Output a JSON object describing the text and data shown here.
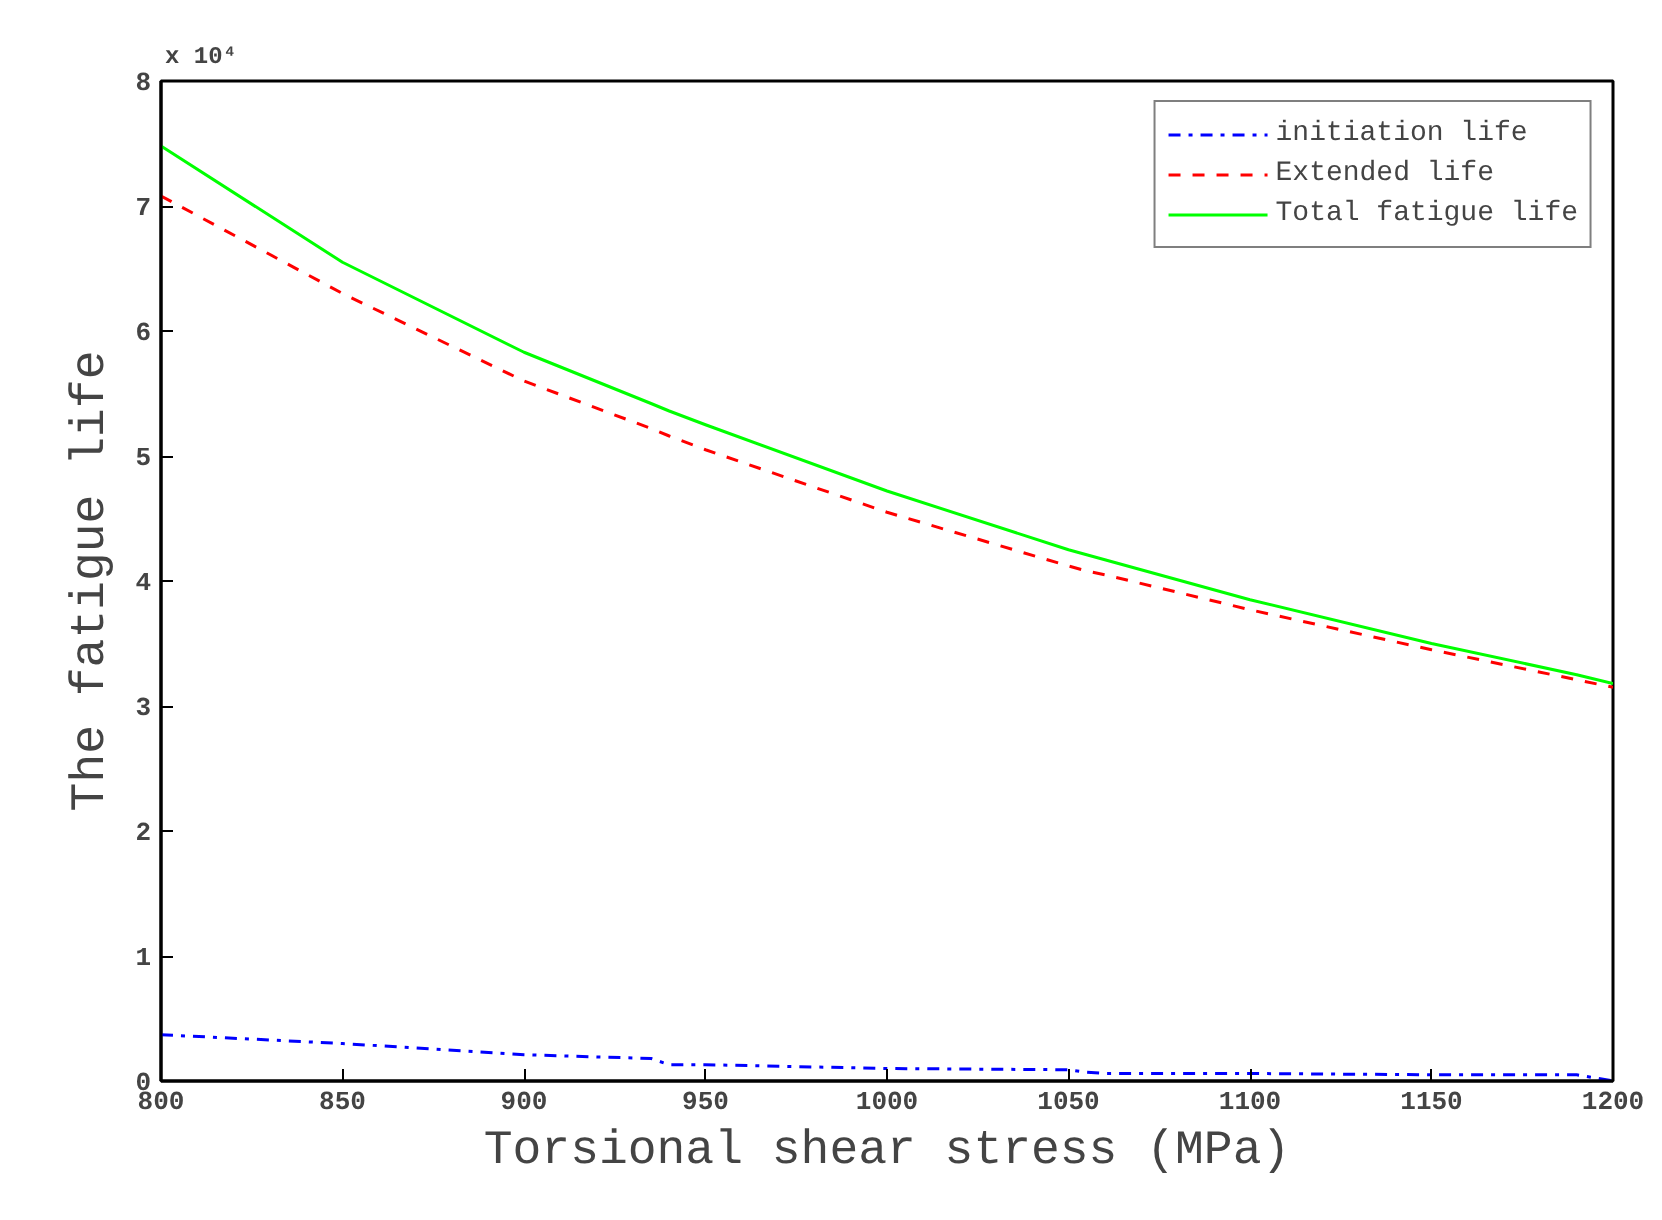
{
  "chart_data": {
    "type": "line",
    "xlabel": "Torsional shear stress (MPa)",
    "ylabel": "The fatigue life",
    "annotations": [
      "x 10⁴"
    ],
    "x": [
      800,
      850,
      900,
      935,
      940,
      950,
      1000,
      1050,
      1055,
      1060,
      1100,
      1150,
      1190,
      1200
    ],
    "series": [
      {
        "name": "initiation life",
        "color": "#0000ff",
        "line_style": "dashdot",
        "values": [
          0.37,
          0.3,
          0.21,
          0.18,
          0.13,
          0.13,
          0.1,
          0.09,
          0.07,
          0.06,
          0.06,
          0.05,
          0.05,
          0.0
        ]
      },
      {
        "name": "Extended life",
        "color": "#ff0000",
        "line_style": "dashed",
        "values": [
          7.08,
          6.3,
          5.6,
          5.22,
          5.16,
          5.05,
          4.55,
          4.12,
          4.08,
          4.05,
          3.77,
          3.45,
          3.21,
          3.15
        ]
      },
      {
        "name": "Total fatigue life",
        "color": "#00ff00",
        "line_style": "solid",
        "values": [
          7.48,
          6.55,
          5.83,
          5.42,
          5.36,
          5.25,
          4.72,
          4.25,
          4.21,
          4.17,
          3.85,
          3.5,
          3.25,
          3.18
        ]
      }
    ],
    "xlim": [
      800,
      1200
    ],
    "xticks": [
      800,
      850,
      900,
      950,
      1000,
      1050,
      1100,
      1150,
      1200
    ],
    "ylim": [
      0,
      8
    ],
    "yticks": [
      0,
      1,
      2,
      3,
      4,
      5,
      6,
      7,
      8
    ],
    "grid": false,
    "legend": "top right"
  }
}
